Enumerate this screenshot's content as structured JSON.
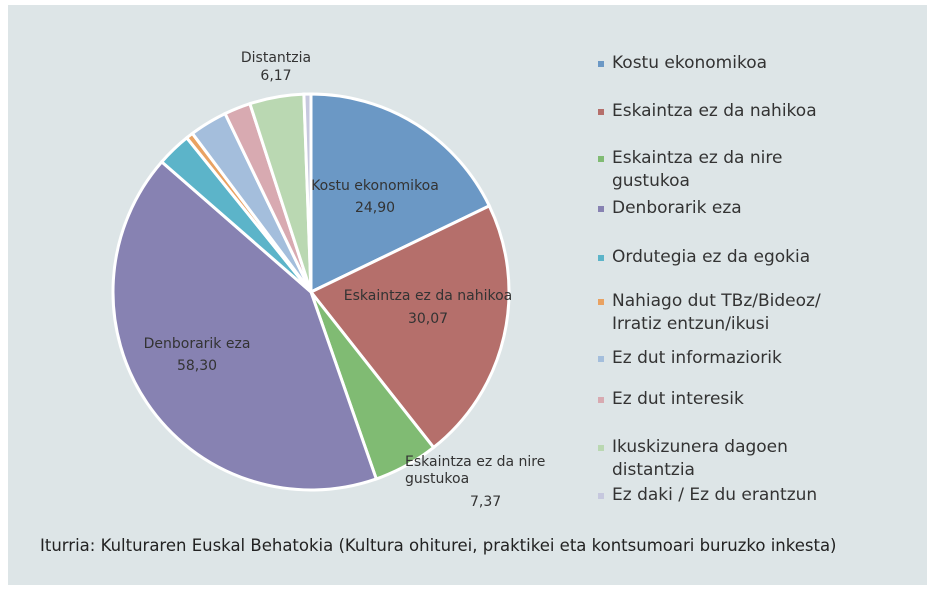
{
  "chart_data": {
    "type": "pie",
    "categories": [
      "Kostu ekonomikoa",
      "Eskaintza ez da nahikoa",
      "Eskaintza ez da nire gustukoa",
      "Denborarik eza",
      "Ordutegia ez da egokia",
      "Nahiago dut TBz/Bideoz/ Irratiz entzun/ikusi",
      "Ez dut informaziorik",
      "Ez dut interesik",
      "Ikuskizunera dagoen distantzia",
      "Ez daki / Ez du erantzun"
    ],
    "values": [
      24.9,
      30.07,
      7.37,
      58.3,
      3.9,
      0.8,
      4.3,
      3.0,
      6.17,
      0.8
    ],
    "value_labels": [
      "24,90",
      "30,07",
      "7,37",
      "58,30",
      null,
      null,
      null,
      null,
      "6,17",
      null
    ],
    "slice_labels": [
      "Kostu ekonomikoa",
      "Eskaintza ez da nahikoa",
      "Eskaintza ez da nire gustukoa",
      "Denborarik eza",
      null,
      null,
      null,
      null,
      "Distantzia",
      null
    ],
    "colors": [
      "#6b98c5",
      "#b56f6b",
      "#80bb73",
      "#8782b2",
      "#5cb4c9",
      "#e9a262",
      "#a4bedc",
      "#d8aab1",
      "#bad8b2",
      "#c6c8de"
    ],
    "source": "Iturria: Kulturaren Euskal Behatokia (Kultura ohiturei, praktikei eta kontsumoari buruzko inkesta)",
    "legend": "right"
  }
}
